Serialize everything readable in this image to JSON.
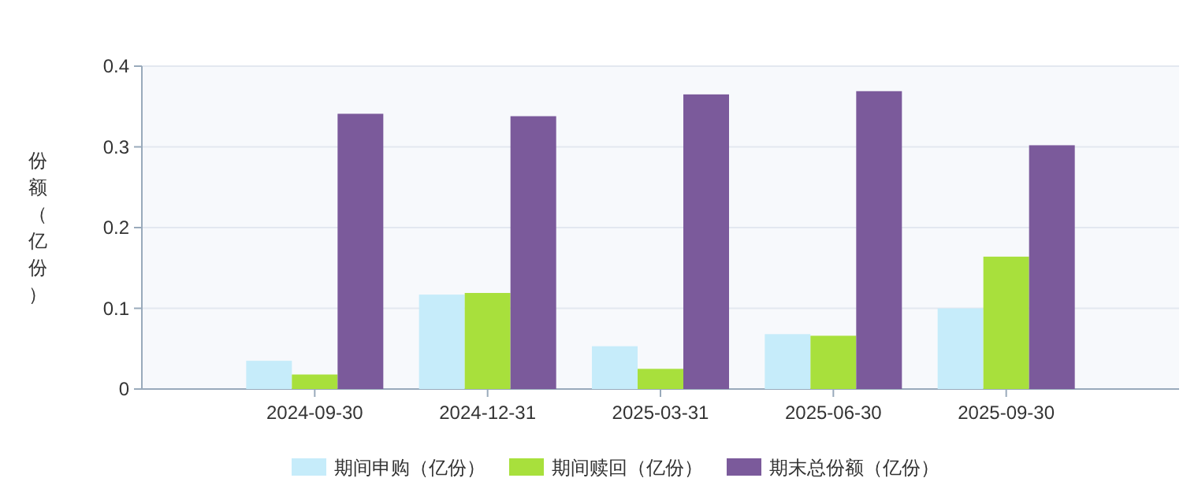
{
  "chart_data": {
    "type": "bar",
    "ylabel": "份额（亿份）",
    "categories": [
      "2024-09-30",
      "2024-12-31",
      "2025-03-31",
      "2025-06-30",
      "2025-09-30"
    ],
    "series": [
      {
        "name": "期间申购（亿份）",
        "color": "#c6ecfa",
        "values": [
          0.035,
          0.117,
          0.053,
          0.068,
          0.1
        ]
      },
      {
        "name": "期间赎回（亿份）",
        "color": "#a8e03c",
        "values": [
          0.018,
          0.119,
          0.025,
          0.066,
          0.164
        ]
      },
      {
        "name": "期末总份额（亿份）",
        "color": "#7b5a9b",
        "values": [
          0.341,
          0.338,
          0.365,
          0.369,
          0.302
        ]
      }
    ],
    "ylim": [
      0,
      0.4
    ],
    "yticks": [
      0,
      0.1,
      0.2,
      0.3,
      0.4
    ],
    "grid": "y",
    "legend": "bottom"
  }
}
